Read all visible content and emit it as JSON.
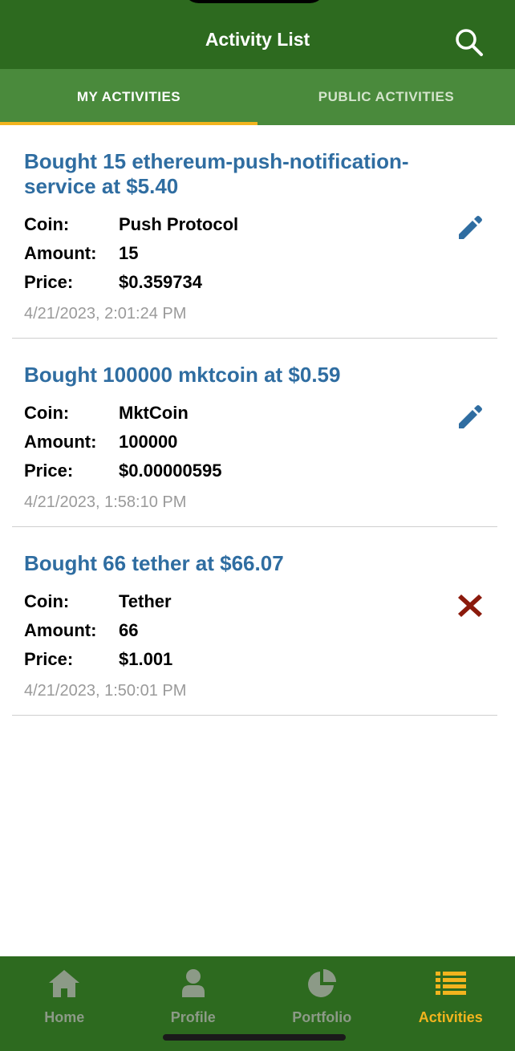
{
  "header": {
    "title": "Activity List",
    "search_icon": "search-icon"
  },
  "tabs": [
    {
      "label": "MY ACTIVITIES",
      "active": true
    },
    {
      "label": "PUBLIC ACTIVITIES",
      "active": false
    }
  ],
  "activities": [
    {
      "title": "Bought 15 ethereum-push-notification-service at $5.40",
      "coin_label": "Coin:",
      "coin": "Push Protocol",
      "amount_label": "Amount:",
      "amount": "15",
      "price_label": "Price:",
      "price": "$0.359734",
      "timestamp": "4/21/2023, 2:01:24 PM",
      "action_icon": "edit-icon"
    },
    {
      "title": "Bought 100000 mktcoin at $0.59",
      "coin_label": "Coin:",
      "coin": "MktCoin",
      "amount_label": "Amount:",
      "amount": "100000",
      "price_label": "Price:",
      "price": "$0.00000595",
      "timestamp": "4/21/2023, 1:58:10 PM",
      "action_icon": "edit-icon"
    },
    {
      "title": "Bought 66 tether at $66.07",
      "coin_label": "Coin:",
      "coin": "Tether",
      "amount_label": "Amount:",
      "amount": "66",
      "price_label": "Price:",
      "price": "$1.001",
      "timestamp": "4/21/2023, 1:50:01 PM",
      "action_icon": "delete-icon"
    }
  ],
  "bottom_nav": [
    {
      "label": "Home",
      "icon": "home-icon",
      "active": false
    },
    {
      "label": "Profile",
      "icon": "person-icon",
      "active": false
    },
    {
      "label": "Portfolio",
      "icon": "pie-chart-icon",
      "active": false
    },
    {
      "label": "Activities",
      "icon": "list-icon",
      "active": true
    }
  ],
  "colors": {
    "header_bg": "#2d6a1f",
    "tab_bg": "#4a8a3c",
    "accent": "#f2b41e",
    "title_blue": "#2f6da1",
    "delete_red": "#8b1a0c",
    "nav_inactive": "#8c9a87"
  }
}
